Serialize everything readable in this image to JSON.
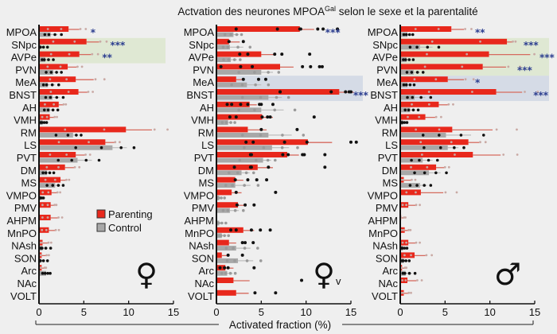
{
  "chart_data": {
    "type": "bar",
    "orientation": "horizontal",
    "title": "Actvation des neurones MPOA",
    "title_superscript": "Gal",
    "title_suffix": " selon le sexe et la parentalité",
    "xlabel": "Activated fraction (%)",
    "xlim": [
      0,
      15
    ],
    "xticks": [
      0,
      5,
      10,
      15
    ],
    "legend": {
      "placement": "left-panel-lower-right",
      "entries": [
        {
          "name": "Parenting",
          "color": "#e8281c"
        },
        {
          "name": "Control",
          "color": "#a8a8a8"
        }
      ]
    },
    "colors": {
      "parenting": "#e8281c",
      "parenting_err": "#d66a5e",
      "control": "#a8a8a8",
      "control_err": "#bdbdbd",
      "stars": "#2b3d8f",
      "green_shade": "#dfe8d3",
      "blue_shade": "#d5dbe6",
      "background": "#efefef"
    },
    "categories": [
      "MPOA",
      "SNpc",
      "AVPe",
      "PVN",
      "MeA",
      "BNST",
      "AH",
      "VMH",
      "RM",
      "LS",
      "PVT",
      "DM",
      "MS",
      "VMPO",
      "PMV",
      "AHPM",
      "MnPO",
      "NAsh",
      "SON",
      "Arc",
      "NAc",
      "VOLT"
    ],
    "panels": [
      {
        "name": "female",
        "symbol": "♀",
        "symbol_sub": "",
        "shaded": [
          {
            "from": "SNpc",
            "to": "AVPe",
            "color": "green"
          }
        ],
        "series": [
          {
            "name": "Parenting",
            "values": [
              3.3,
              5.3,
              4.5,
              3.2,
              4.1,
              4.4,
              2.2,
              1.2,
              9.7,
              7.4,
              4.1,
              2.9,
              2.4,
              1.4,
              1.3,
              1.3,
              1.1,
              0.4,
              0.3,
              0.3,
              0,
              0
            ],
            "errors": [
              1.2,
              1.4,
              1.3,
              1.0,
              2.0,
              1.0,
              0.5,
              0.5,
              2.9,
              1.0,
              1.0,
              1.0,
              0.6,
              0.6,
              0.4,
              0.8,
              0.7,
              0.6,
              0.5,
              0.3,
              0,
              0
            ]
          },
          {
            "name": "Control",
            "values": [
              1.3,
              0.2,
              0.7,
              1.6,
              1.0,
              1.5,
              1.2,
              0.4,
              3.8,
              8.2,
              4.3,
              0.9,
              1.8,
              0.2,
              0,
              0,
              0,
              0.4,
              0.2,
              0.8,
              0,
              0
            ],
            "errors": [
              0.8,
              0.5,
              0.6,
              0.6,
              0.8,
              0.8,
              0.6,
              0.3,
              0.6,
              1.6,
              1.6,
              0.5,
              0.6,
              0.2,
              0,
              0,
              0,
              0.6,
              0.5,
              0.3,
              0,
              0
            ]
          }
        ],
        "significance": [
          {
            "region": "MPOA",
            "stars": "*"
          },
          {
            "region": "SNpc",
            "stars": "***"
          },
          {
            "region": "AVPe",
            "stars": "**"
          }
        ]
      },
      {
        "name": "virgin female",
        "symbol": "♀",
        "symbol_sub": "v",
        "shaded": [
          {
            "from": "MeA",
            "to": "BNST",
            "color": "blue"
          }
        ],
        "series": [
          {
            "name": "Parenting",
            "values": [
              9.3,
              1.4,
              5.0,
              7.1,
              2.2,
              13.7,
              3.7,
              5.1,
              3.5,
              10.2,
              7.9,
              4.6,
              2.1,
              1.7,
              2.4,
              0,
              3.0,
              1.4,
              0.6,
              1.0,
              1.9,
              2.2
            ],
            "errors": [
              1.6,
              1.2,
              1.4,
              1.5,
              0.9,
              1.6,
              0.8,
              1.2,
              2.1,
              2.7,
              1.3,
              1.7,
              0.9,
              1.1,
              0.8,
              0,
              1.2,
              0.8,
              0.6,
              0.9,
              1.8,
              1.4
            ],
            "dots": [
              [
                2.2,
                6.8,
                9.3,
                9.4,
                11.3,
                11.9,
                13.5
              ],
              [
                1.4,
                3.0
              ],
              [
                2.6,
                3.5,
                6.5,
                7.3,
                10.4
              ],
              [
                0.5,
                2.7,
                4.0,
                9.6,
                10.5,
                11.5,
                11.8
              ],
              [
                3.0,
                4.7,
                5.5
              ],
              [
                7.1,
                7.1,
                12.8,
                14.4,
                14.8,
                15.0
              ],
              [
                1.2,
                1.7,
                2.7,
                3.5,
                4.8,
                5.0,
                6.3
              ],
              [
                1.5,
                2.2,
                5.1,
                5.7,
                6.0,
                10.9
              ],
              [
                5.0,
                9.0
              ],
              [
                3.3,
                4.1,
                7.6,
                10.1,
                15.0,
                15.6
              ],
              [
                3.8,
                3.9,
                7.4,
                8.0,
                9.6,
                9.8,
                12.1
              ],
              [
                2.0,
                3.8,
                3.9,
                5.8,
                12.1
              ],
              [
                2.1,
                3.5,
                4.5,
                5.6
              ],
              [
                2.2,
                6.6
              ],
              [
                2.3,
                3.2,
                4.2
              ],
              [],
              [
                1.6,
                2.2,
                3.9,
                4.9,
                6.0
              ],
              [
                2.9,
                3.2,
                4.1
              ],
              [
                1.3,
                2.9
              ],
              [
                0.4,
                0.9,
                1.3,
                4.2
              ],
              [
                9.5
              ],
              [
                4.3,
                6.6
              ]
            ]
          },
          {
            "name": "Control",
            "values": [
              1.9,
              1.5,
              1.6,
              5.0,
              3.4,
              5.8,
              5.0,
              1.3,
              5.8,
              6.2,
              5.2,
              2.8,
              2.1,
              0.3,
              1.5,
              0.3,
              0.6,
              2.2,
              2.4,
              1.2,
              0,
              0
            ],
            "errors": [
              0.6,
              1.5,
              0.7,
              1.3,
              1.6,
              1.5,
              2.5,
              0.5,
              2.6,
              1.9,
              0.9,
              0.9,
              1.7,
              0.4,
              1.0,
              0.5,
              0.5,
              1.6,
              1.7,
              0.6,
              0,
              0
            ]
          }
        ],
        "significance": [
          {
            "region": "MPOA",
            "stars": "***"
          },
          {
            "region": "BNST",
            "stars": "***"
          }
        ]
      },
      {
        "name": "male",
        "symbol": "♂",
        "symbol_sub": "",
        "shaded": [
          {
            "from": "SNpc",
            "to": "PVN",
            "color": "green"
          },
          {
            "from": "MeA",
            "to": "BNST",
            "color": "blue"
          }
        ],
        "series": [
          {
            "name": "Parenting",
            "values": [
              5.7,
              11.9,
              9.9,
              9.2,
              5.3,
              10.7,
              4.3,
              2.8,
              5.8,
              7.6,
              8.1,
              4.0,
              0.4,
              2.3,
              0.9,
              0.1,
              0.5,
              0.9,
              1.6,
              0.2,
              0.8,
              0.4
            ],
            "errors": [
              1.4,
              0.6,
              4.6,
              2.6,
              1.8,
              2.9,
              1.0,
              1.1,
              4.5,
              1.2,
              3.1,
              0.9,
              0.8,
              2.5,
              0.8,
              0.3,
              0.4,
              0.8,
              1.2,
              0.3,
              1.0,
              0.5
            ]
          },
          {
            "name": "Control",
            "values": [
              0.8,
              2.2,
              0.7,
              1.5,
              0.8,
              1.6,
              1.1,
              0.3,
              5.1,
              5.3,
              2.5,
              3.2,
              2.2,
              0,
              0,
              0,
              0,
              0.3,
              0.4,
              0.6,
              0,
              0
            ],
            "errors": [
              0.4,
              1.4,
              0.5,
              0.7,
              0.5,
              1.2,
              0.6,
              0.3,
              2.8,
              1.2,
              1.1,
              1.3,
              0.8,
              0,
              0,
              0,
              0,
              0.3,
              0.4,
              0.7,
              0,
              0
            ]
          }
        ],
        "significance": [
          {
            "region": "MPOA",
            "stars": "**"
          },
          {
            "region": "SNpc",
            "stars": "***"
          },
          {
            "region": "AVPe",
            "stars": "***"
          },
          {
            "region": "PVN",
            "stars": "***"
          },
          {
            "region": "MeA",
            "stars": "*"
          },
          {
            "region": "BNST",
            "stars": "***"
          }
        ]
      }
    ]
  }
}
